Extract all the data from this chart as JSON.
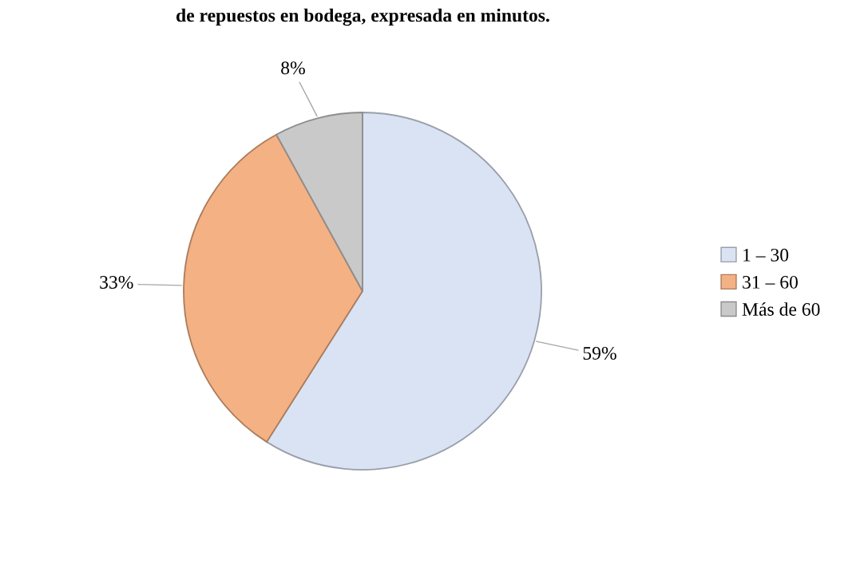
{
  "chart_data": {
    "type": "pie",
    "title": "de repuestos en bodega, expresada en minutos.",
    "categories": [
      "1 – 30",
      "31 – 60",
      "Más de 60"
    ],
    "values": [
      59,
      33,
      8
    ],
    "colors": [
      "#dae3f3",
      "#f4b183",
      "#c9c9c9"
    ],
    "value_labels": [
      "59%",
      "33%",
      "8%"
    ],
    "legend": "right"
  }
}
